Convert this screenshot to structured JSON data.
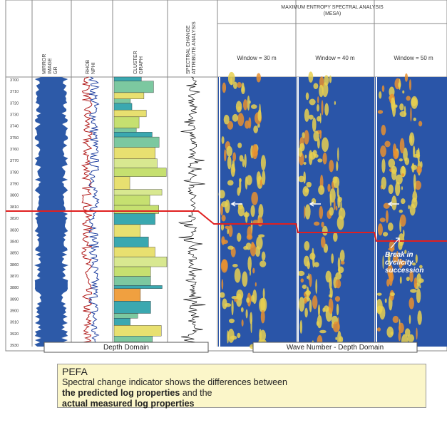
{
  "columns": {
    "gr": [
      "MIRROR",
      "IMAGE",
      "GR"
    ],
    "rhob": [
      "RHOB",
      "NPHI"
    ],
    "cluster": [
      "CLUSTER",
      "GRAPH"
    ],
    "spectral": [
      "SPECTRAL CHANGE",
      "ATTRIBUTE ANALYSIS"
    ]
  },
  "mesa": {
    "title": [
      "MAXIMUM ENTROPY SPECTRAL ANALYSIS",
      "(MESA)"
    ],
    "windows": [
      "Window = 30 m",
      "Window = 40 m",
      "Window = 50 m"
    ]
  },
  "depths": [
    "3700",
    "3710",
    "3720",
    "3730",
    "3740",
    "3750",
    "3760",
    "3770",
    "3780",
    "3790",
    "3800",
    "3810",
    "3820",
    "3830",
    "3840",
    "3850",
    "3860",
    "3870",
    "3880",
    "3890",
    "3900",
    "3910",
    "3920",
    "3930"
  ],
  "annotation": [
    "Break in",
    "cyclicity",
    "succession"
  ],
  "domains": {
    "depth": "Depth Domain",
    "wave": "Wave Number - Depth Domain"
  },
  "note": {
    "title": "PEFA",
    "line1": "Spectral change indicator shows the differences between",
    "bold1": "the predicted log properties",
    "mid": " and the",
    "bold2": "actual measured log properties"
  }
}
